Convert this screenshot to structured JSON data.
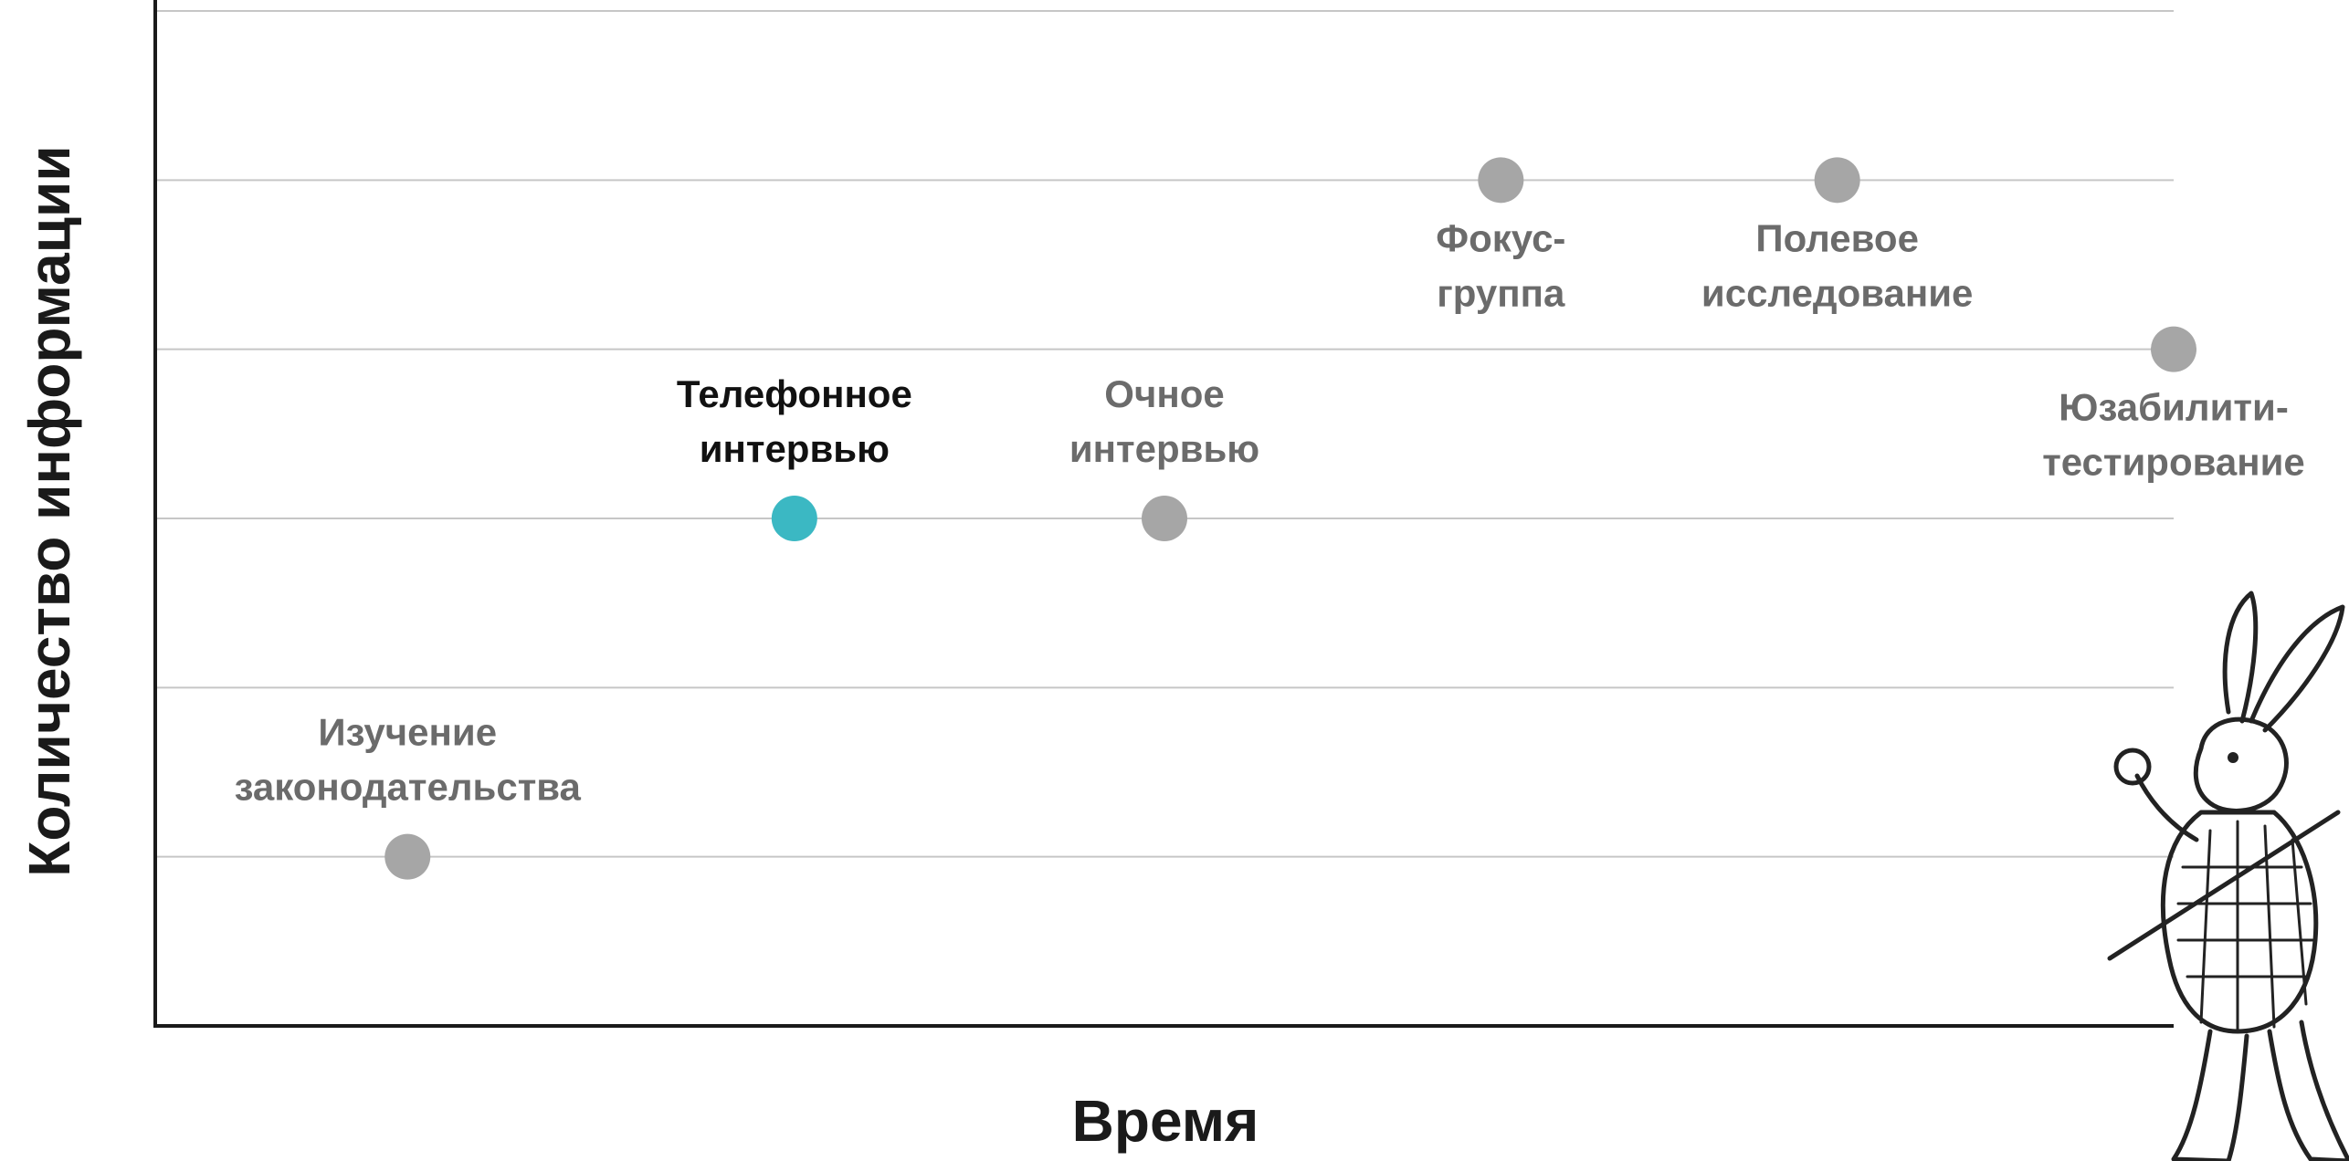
{
  "chart_data": {
    "type": "scatter",
    "xlabel": "Время",
    "ylabel": "Количество информации",
    "grid": true,
    "xlim": [
      0,
      12
    ],
    "ylim": [
      0,
      6
    ],
    "points": [
      {
        "label": [
          "Изучение",
          "законодательства"
        ],
        "x": 1.5,
        "y": 1,
        "color": "#a6a6a6",
        "label_color": "#6b6b6b",
        "label_pos": "above",
        "highlight": false
      },
      {
        "label": [
          "Телефонное",
          "интервью"
        ],
        "x": 3.8,
        "y": 3,
        "color": "#3bb8c3",
        "label_color": "#111111",
        "label_pos": "above",
        "highlight": true
      },
      {
        "label": [
          "Очное",
          "интервью"
        ],
        "x": 6.0,
        "y": 3,
        "color": "#a6a6a6",
        "label_color": "#6b6b6b",
        "label_pos": "above",
        "highlight": false
      },
      {
        "label": [
          "Фокус-",
          "группа"
        ],
        "x": 8.0,
        "y": 5,
        "color": "#a6a6a6",
        "label_color": "#6b6b6b",
        "label_pos": "below",
        "highlight": false
      },
      {
        "label": [
          "Полевое",
          "исследование"
        ],
        "x": 10.0,
        "y": 5,
        "color": "#a6a6a6",
        "label_color": "#6b6b6b",
        "label_pos": "below",
        "highlight": false
      },
      {
        "label": [
          "Юзабилити-",
          "тестирование"
        ],
        "x": 12.0,
        "y": 4,
        "color": "#a6a6a6",
        "label_color": "#6b6b6b",
        "label_pos": "below",
        "highlight": false
      }
    ]
  },
  "decoration": {
    "icon": "white-rabbit-illustration-icon"
  }
}
